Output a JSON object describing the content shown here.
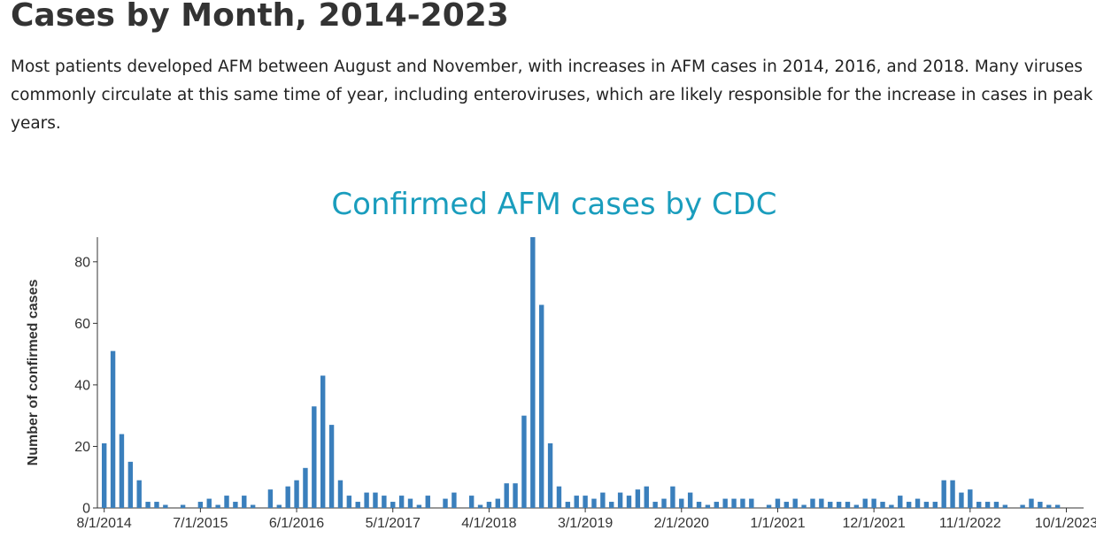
{
  "header": {
    "title": "Cases by Month, 2014-2023",
    "description": "Most patients developed AFM between August and November, with increases in AFM cases in 2014, 2016, and 2018. Many viruses commonly circulate at this same time of year, including enteroviruses, which are likely responsible for the increase in cases in peak years."
  },
  "colors": {
    "bar": "#3a7fbc",
    "title": "#1a9dbd"
  },
  "chart_data": {
    "type": "bar",
    "title": "Confirmed AFM cases by CDC",
    "xlabel": "",
    "ylabel": "Number of confirmed cases",
    "start_month": "2014-08",
    "categories": [
      "8/1/2014",
      "9/1/2014",
      "10/1/2014",
      "11/1/2014",
      "12/1/2014",
      "1/1/2015",
      "2/1/2015",
      "3/1/2015",
      "4/1/2015",
      "5/1/2015",
      "6/1/2015",
      "7/1/2015",
      "8/1/2015",
      "9/1/2015",
      "10/1/2015",
      "11/1/2015",
      "12/1/2015",
      "1/1/2016",
      "2/1/2016",
      "3/1/2016",
      "4/1/2016",
      "5/1/2016",
      "6/1/2016",
      "7/1/2016",
      "8/1/2016",
      "9/1/2016",
      "10/1/2016",
      "11/1/2016",
      "12/1/2016",
      "1/1/2017",
      "2/1/2017",
      "3/1/2017",
      "4/1/2017",
      "5/1/2017",
      "6/1/2017",
      "7/1/2017",
      "8/1/2017",
      "9/1/2017",
      "10/1/2017",
      "11/1/2017",
      "12/1/2017",
      "1/1/2018",
      "2/1/2018",
      "3/1/2018",
      "4/1/2018",
      "5/1/2018",
      "6/1/2018",
      "7/1/2018",
      "8/1/2018",
      "9/1/2018",
      "10/1/2018",
      "11/1/2018",
      "12/1/2018",
      "1/1/2019",
      "2/1/2019",
      "3/1/2019",
      "4/1/2019",
      "5/1/2019",
      "6/1/2019",
      "7/1/2019",
      "8/1/2019",
      "9/1/2019",
      "10/1/2019",
      "11/1/2019",
      "12/1/2019",
      "1/1/2020",
      "2/1/2020",
      "3/1/2020",
      "4/1/2020",
      "5/1/2020",
      "6/1/2020",
      "7/1/2020",
      "8/1/2020",
      "9/1/2020",
      "10/1/2020",
      "11/1/2020",
      "12/1/2020",
      "1/1/2021",
      "2/1/2021",
      "3/1/2021",
      "4/1/2021",
      "5/1/2021",
      "6/1/2021",
      "7/1/2021",
      "8/1/2021",
      "9/1/2021",
      "10/1/2021",
      "11/1/2021",
      "12/1/2021",
      "1/1/2022",
      "2/1/2022",
      "3/1/2022",
      "4/1/2022",
      "5/1/2022",
      "6/1/2022",
      "7/1/2022",
      "8/1/2022",
      "9/1/2022",
      "10/1/2022",
      "11/1/2022",
      "12/1/2022",
      "1/1/2023",
      "2/1/2023",
      "3/1/2023",
      "4/1/2023",
      "5/1/2023",
      "6/1/2023",
      "7/1/2023",
      "8/1/2023",
      "9/1/2023",
      "10/1/2023",
      "11/1/2023",
      "12/1/2023"
    ],
    "values": [
      21,
      51,
      24,
      15,
      9,
      2,
      2,
      1,
      0,
      1,
      0,
      2,
      3,
      1,
      4,
      2,
      4,
      1,
      0,
      6,
      1,
      7,
      9,
      13,
      33,
      43,
      27,
      9,
      4,
      2,
      5,
      5,
      4,
      2,
      4,
      3,
      1,
      4,
      0,
      3,
      5,
      0,
      4,
      1,
      2,
      3,
      8,
      8,
      30,
      88,
      66,
      21,
      7,
      2,
      4,
      4,
      3,
      5,
      2,
      5,
      4,
      6,
      7,
      2,
      3,
      7,
      3,
      5,
      2,
      1,
      2,
      3,
      3,
      3,
      3,
      0,
      1,
      3,
      2,
      3,
      1,
      3,
      3,
      2,
      2,
      2,
      1,
      3,
      3,
      2,
      1,
      4,
      2,
      3,
      2,
      2,
      9,
      9,
      5,
      6,
      2,
      2,
      2,
      1,
      0,
      1,
      3,
      2,
      1,
      1,
      0,
      0,
      0
    ],
    "xticks": [
      "8/1/2014",
      "7/1/2015",
      "6/1/2016",
      "5/1/2017",
      "4/1/2018",
      "3/1/2019",
      "2/1/2020",
      "1/1/2021",
      "12/1/2021",
      "11/1/2022",
      "10/1/2023"
    ],
    "yticks": [
      0,
      20,
      40,
      60,
      80
    ],
    "ylim": [
      0,
      88
    ],
    "grid": false,
    "legend": "none"
  }
}
